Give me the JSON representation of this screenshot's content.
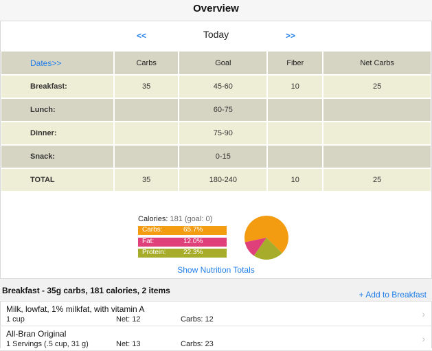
{
  "header": {
    "title": "Overview"
  },
  "date_nav": {
    "prev": "<<",
    "label": "Today",
    "next": ">>"
  },
  "grid": {
    "headers": [
      "Dates>>",
      "Carbs",
      "Goal",
      "Fiber",
      "Net Carbs"
    ],
    "rows": [
      {
        "meal": "Breakfast:",
        "carbs": "35",
        "goal": "45-60",
        "fiber": "10",
        "net": "25"
      },
      {
        "meal": "Lunch:",
        "carbs": "",
        "goal": "60-75",
        "fiber": "",
        "net": ""
      },
      {
        "meal": "Dinner:",
        "carbs": "",
        "goal": "75-90",
        "fiber": "",
        "net": ""
      },
      {
        "meal": "Snack:",
        "carbs": "",
        "goal": "0-15",
        "fiber": "",
        "net": ""
      },
      {
        "meal": "TOTAL",
        "carbs": "35",
        "goal": "180-240",
        "fiber": "10",
        "net": "25"
      }
    ]
  },
  "nutrition": {
    "calories_label": "Calories:",
    "calories_value": "181 (goal: 0)",
    "macros": [
      {
        "label": "Carbs:",
        "pct": "65.7%",
        "value": 65.7,
        "color": "#f39c12"
      },
      {
        "label": "Fat:",
        "pct": "12.0%",
        "value": 12.0,
        "color": "#e0407a"
      },
      {
        "label": "Protein:",
        "pct": "22.3%",
        "value": 22.3,
        "color": "#a7ad2a"
      }
    ],
    "show_totals": "Show Nutrition Totals"
  },
  "section": {
    "title": "Breakfast - 35g carbs, 181 calories, 2 items",
    "add_button": "+ Add to Breakfast"
  },
  "items": [
    {
      "name": "Milk, lowfat, 1% milkfat, with vitamin A",
      "serving": "1 cup",
      "net": "Net: 12",
      "carbs": "Carbs: 12"
    },
    {
      "name": "All-Bran Original",
      "serving": "1 Servings (.5 cup, 31 g)",
      "net": "Net: 13",
      "carbs": "Carbs: 23"
    }
  ]
}
